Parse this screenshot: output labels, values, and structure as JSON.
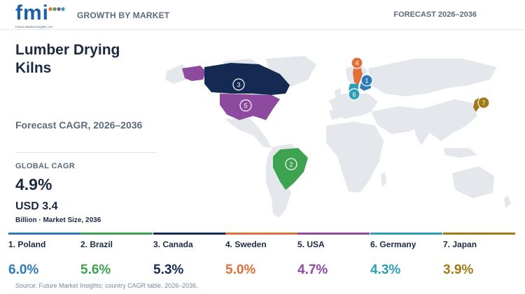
{
  "header": {
    "logo_text": "fmi",
    "logo_sub": "Future Market Insights, Inc.",
    "left_label": "GROWTH BY MARKET",
    "right_label": "FORECAST 2026–2036"
  },
  "report": {
    "title": "Lumber Drying Kilns",
    "cagr_label": "Forecast CAGR, 2026–2036",
    "global_label": "GLOBAL CAGR",
    "global_value": "4.9%",
    "size_value": "USD 3.4",
    "size_unit": "Billion · Market Size, 2036"
  },
  "countries": [
    {
      "rank": "1",
      "label": "1. Poland",
      "value": "6.0%",
      "color": "#2b7bba"
    },
    {
      "rank": "2",
      "label": "2. Brazil",
      "value": "5.6%",
      "color": "#3ea350"
    },
    {
      "rank": "3",
      "label": "3. Canada",
      "value": "5.3%",
      "color": "#142a52"
    },
    {
      "rank": "4",
      "label": "4. Sweden",
      "value": "5.0%",
      "color": "#e0703a"
    },
    {
      "rank": "5",
      "label": "5. USA",
      "value": "4.7%",
      "color": "#8e4a9e"
    },
    {
      "rank": "6",
      "label": "6. Germany",
      "value": "4.3%",
      "color": "#2a9fb5"
    },
    {
      "rank": "7",
      "label": "7. Japan",
      "value": "3.9%",
      "color": "#a07a17"
    }
  ],
  "colors": {
    "land": "#e4e7eb",
    "text_dark": "#1b2a41",
    "text_muted": "#5a6b7d",
    "logo_blue": "#1f5fa8"
  },
  "source": "Source: Future Market Insights; country CAGR table, 2026–2036."
}
